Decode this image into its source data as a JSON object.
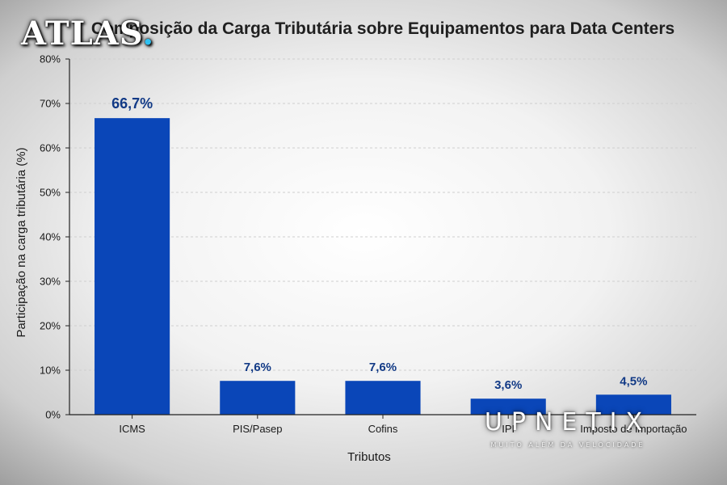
{
  "chart_data": {
    "type": "bar",
    "title": "Composição da Carga Tributária sobre Equipamentos para Data Centers",
    "xlabel": "Tributos",
    "ylabel": "Participação na carga tributária (%)",
    "categories": [
      "ICMS",
      "PIS/Pasep",
      "Cofins",
      "IPI",
      "Imposto de importação"
    ],
    "values": [
      66.7,
      7.6,
      7.6,
      3.6,
      4.5
    ],
    "data_labels": [
      "66,7%",
      "7,6%",
      "7,6%",
      "3,6%",
      "4,5%"
    ],
    "ylim": [
      0,
      80
    ],
    "yticks": [
      0,
      10,
      20,
      30,
      40,
      50,
      60,
      70,
      80
    ],
    "ytick_labels": [
      "0%",
      "10%",
      "20%",
      "30%",
      "40%",
      "50%",
      "60%",
      "70%",
      "80%"
    ],
    "grid": true,
    "bar_color": "#0a46b8",
    "label_color": "#123a86"
  },
  "watermarks": {
    "atlas": "ATLAS",
    "atlas_dot": ".",
    "upnetix_name": "UPNETIX",
    "upnetix_tagline": "MUITO ALÉM DA VELOCIDADE"
  }
}
